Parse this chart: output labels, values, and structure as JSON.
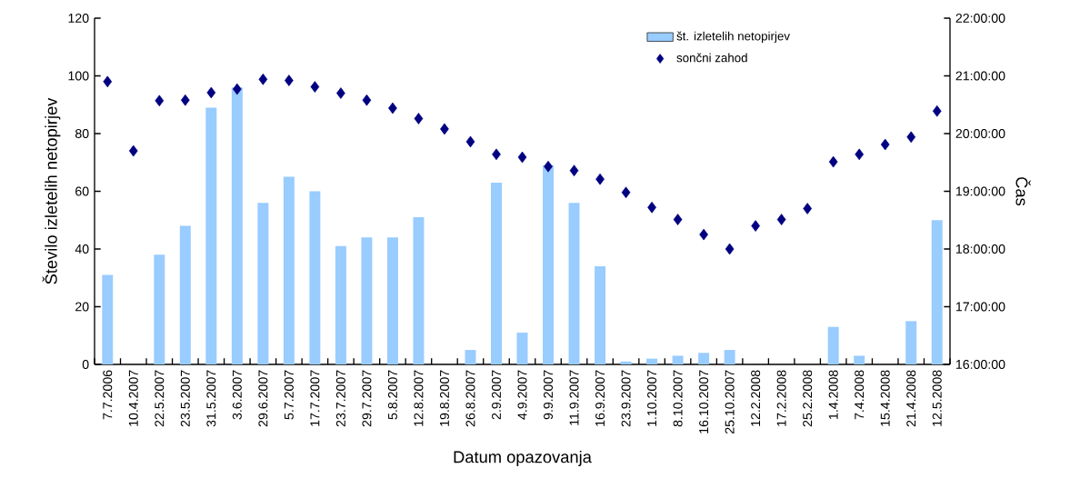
{
  "chart_data": {
    "type": "bar",
    "categories": [
      "7.7.2006",
      "10.4.2007",
      "22.5.2007",
      "23.5.2007",
      "31.5.2007",
      "3.6.2007",
      "29.6.2007",
      "5.7.2007",
      "17.7.2007",
      "23.7.2007",
      "29.7.2007",
      "5.8.2007",
      "12.8.2007",
      "19.8.2007",
      "26.8.2007",
      "2.9.2007",
      "4.9.2007",
      "9.9.2007",
      "11.9.2007",
      "16.9.2007",
      "23.9.2007",
      "1.10.2007",
      "8.10.2007",
      "16.10.2007",
      "25.10.2007",
      "12.2.2008",
      "17.2.2008",
      "25.2.2008",
      "1.4.2008",
      "7.4.2008",
      "15.4.2008",
      "21.4.2008",
      "12.5.2008"
    ],
    "series": [
      {
        "name": "št. izletelih netopirjev",
        "color": "#99ccff",
        "values": [
          31,
          0,
          38,
          48,
          89,
          96,
          56,
          65,
          60,
          41,
          44,
          44,
          51,
          0,
          5,
          63,
          11,
          69,
          56,
          34,
          1,
          2,
          3,
          4,
          5,
          0,
          0,
          0,
          13,
          3,
          0,
          15,
          50
        ]
      },
      {
        "name": "sončni zahod",
        "type": "scatter",
        "axis": "y2",
        "marker": "diamond",
        "color": "#000080",
        "values": [
          20.9,
          19.7,
          20.57,
          20.58,
          20.71,
          20.77,
          20.94,
          20.92,
          20.81,
          20.7,
          20.58,
          20.44,
          20.26,
          20.08,
          19.86,
          19.64,
          19.59,
          19.43,
          19.36,
          19.21,
          18.98,
          18.72,
          18.51,
          18.25,
          18.0,
          18.4,
          18.51,
          18.7,
          19.51,
          19.64,
          19.81,
          19.94,
          20.39
        ]
      }
    ],
    "xlabel": "Datum opazovanja",
    "ylabel": "Število izletelih netopirjev",
    "y2label": "Čas",
    "ylim": [
      0,
      120
    ],
    "yticks": [
      0,
      20,
      40,
      60,
      80,
      100,
      120
    ],
    "y2lim": [
      16,
      22
    ],
    "y2ticks": [
      {
        "value": 16,
        "label": "16:00:00"
      },
      {
        "value": 17,
        "label": "17:00:00"
      },
      {
        "value": 18,
        "label": "18:00:00"
      },
      {
        "value": 19,
        "label": "19:00:00"
      },
      {
        "value": 20,
        "label": "20:00:00"
      },
      {
        "value": 21,
        "label": "21:00:00"
      },
      {
        "value": 22,
        "label": "22:00:00"
      }
    ],
    "legend": "top right"
  }
}
